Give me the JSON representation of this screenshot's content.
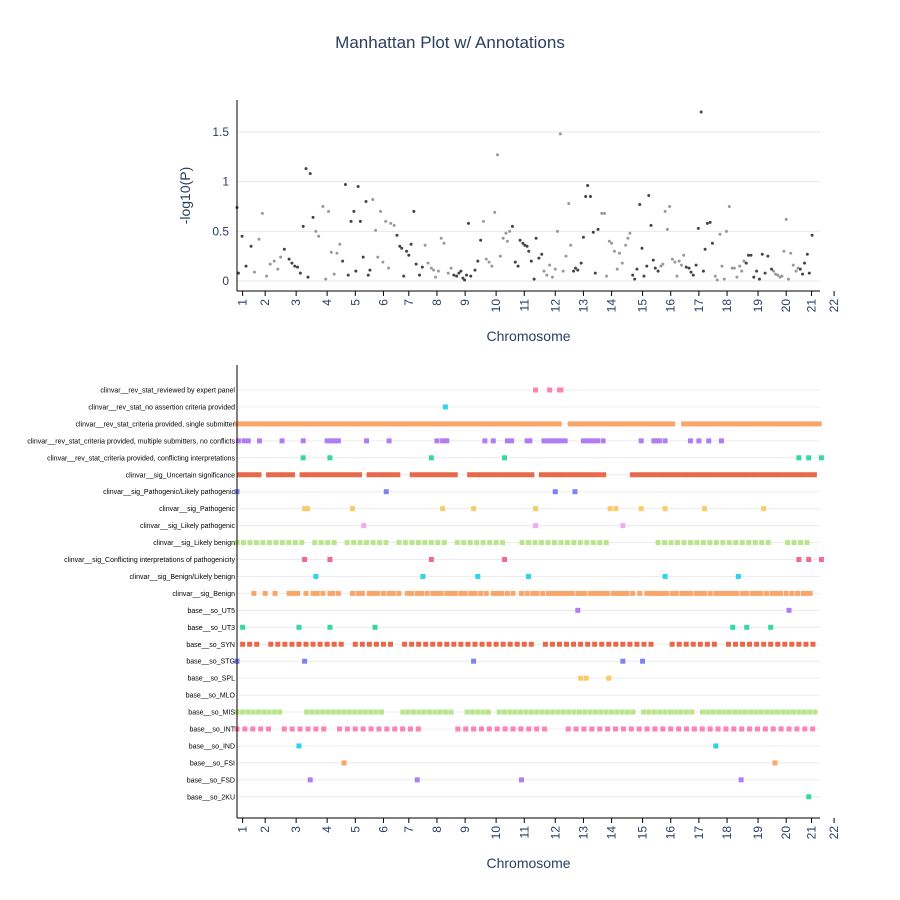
{
  "title": "Manhattan Plot w/ Annotations",
  "chart_data": [
    {
      "type": "scatter",
      "name": "manhattan",
      "xlabel": "Chromosome",
      "ylabel": "-log10(P)",
      "ylim": [
        -0.1,
        1.82
      ],
      "yticks": [
        "0",
        "0.5",
        "1",
        "1.5"
      ],
      "ytick_values": [
        0,
        0.5,
        1,
        1.5
      ],
      "chromosomes": [
        "1",
        "2",
        "3",
        "4",
        "5",
        "6",
        "7",
        "8",
        "9",
        "10",
        "11",
        "12",
        "13",
        "14",
        "15",
        "16",
        "17",
        "18",
        "19",
        "20",
        "21",
        "22"
      ],
      "chrom_positions": [
        0.2,
        1.0,
        2.1,
        3.2,
        4.2,
        5.2,
        6.1,
        7.1,
        8.1,
        9.2,
        10.2,
        11.3,
        12.3,
        13.3,
        14.4,
        15.4,
        16.4,
        17.4,
        18.5,
        19.5,
        20.4,
        21.2
      ],
      "colors": [
        "#444444",
        "#999999"
      ],
      "grid": true,
      "points": [
        [
          0.0,
          0.74
        ],
        [
          0.05,
          0.08
        ],
        [
          0.18,
          0.45
        ],
        [
          0.32,
          0.15
        ],
        [
          0.5,
          0.35
        ],
        [
          0.62,
          0.09
        ],
        [
          0.78,
          0.42
        ],
        [
          0.9,
          0.68
        ],
        [
          1.05,
          0.05
        ],
        [
          1.18,
          0.17
        ],
        [
          1.32,
          0.2
        ],
        [
          1.45,
          0.12
        ],
        [
          1.55,
          0.24
        ],
        [
          1.68,
          0.32
        ],
        [
          1.85,
          0.22
        ],
        [
          1.95,
          0.18
        ],
        [
          2.05,
          0.15
        ],
        [
          2.15,
          0.14
        ],
        [
          2.25,
          0.08
        ],
        [
          2.35,
          0.55
        ],
        [
          2.45,
          1.13
        ],
        [
          2.52,
          0.04
        ],
        [
          2.6,
          1.08
        ],
        [
          2.7,
          0.64
        ],
        [
          2.8,
          0.5
        ],
        [
          2.9,
          0.45
        ],
        [
          3.05,
          0.75
        ],
        [
          3.15,
          0.02
        ],
        [
          3.25,
          0.7
        ],
        [
          3.35,
          0.29
        ],
        [
          3.45,
          0.07
        ],
        [
          3.55,
          0.28
        ],
        [
          3.65,
          0.37
        ],
        [
          3.75,
          0.2
        ],
        [
          3.85,
          0.97
        ],
        [
          3.95,
          0.06
        ],
        [
          4.05,
          0.6
        ],
        [
          4.15,
          0.7
        ],
        [
          4.22,
          0.1
        ],
        [
          4.3,
          0.95
        ],
        [
          4.38,
          0.6
        ],
        [
          4.48,
          0.24
        ],
        [
          4.58,
          0.8
        ],
        [
          4.66,
          0.06
        ],
        [
          4.72,
          0.11
        ],
        [
          4.82,
          0.82
        ],
        [
          4.92,
          0.51
        ],
        [
          5.0,
          0.24
        ],
        [
          5.1,
          0.7
        ],
        [
          5.18,
          0.19
        ],
        [
          5.28,
          0.6
        ],
        [
          5.38,
          0.13
        ],
        [
          5.46,
          0.58
        ],
        [
          5.58,
          0.56
        ],
        [
          5.68,
          0.46
        ],
        [
          5.78,
          0.35
        ],
        [
          5.85,
          0.33
        ],
        [
          5.92,
          0.05
        ],
        [
          6.02,
          0.3
        ],
        [
          6.1,
          0.26
        ],
        [
          6.18,
          0.37
        ],
        [
          6.28,
          0.7
        ],
        [
          6.36,
          0.17
        ],
        [
          6.48,
          0.06
        ],
        [
          6.58,
          0.14
        ],
        [
          6.68,
          0.36
        ],
        [
          6.78,
          0.18
        ],
        [
          6.9,
          0.13
        ],
        [
          6.98,
          0.11
        ],
        [
          7.05,
          0.04
        ],
        [
          7.15,
          0.1
        ],
        [
          7.25,
          0.43
        ],
        [
          7.35,
          0.38
        ],
        [
          7.5,
          0.08
        ],
        [
          7.6,
          0.13
        ],
        [
          7.7,
          0.06
        ],
        [
          7.8,
          0.05
        ],
        [
          7.88,
          0.08
        ],
        [
          7.95,
          0.1
        ],
        [
          8.02,
          0.03
        ],
        [
          8.08,
          0.01
        ],
        [
          8.15,
          0.06
        ],
        [
          8.22,
          0.58
        ],
        [
          8.3,
          0.05
        ],
        [
          8.45,
          0.11
        ],
        [
          8.55,
          0.2
        ],
        [
          8.65,
          0.41
        ],
        [
          8.75,
          0.6
        ],
        [
          8.85,
          0.22
        ],
        [
          8.95,
          0.19
        ],
        [
          9.05,
          0.15
        ],
        [
          9.15,
          0.69
        ],
        [
          9.25,
          1.27
        ],
        [
          9.35,
          0.25
        ],
        [
          9.45,
          0.43
        ],
        [
          9.55,
          0.48
        ],
        [
          9.6,
          0.4
        ],
        [
          9.68,
          0.5
        ],
        [
          9.78,
          0.55
        ],
        [
          9.88,
          0.19
        ],
        [
          9.98,
          0.15
        ],
        [
          10.05,
          0.41
        ],
        [
          10.15,
          0.38
        ],
        [
          10.22,
          0.36
        ],
        [
          10.3,
          0.35
        ],
        [
          10.36,
          0.3
        ],
        [
          10.45,
          0.2
        ],
        [
          10.55,
          0.02
        ],
        [
          10.62,
          0.43
        ],
        [
          10.72,
          0.23
        ],
        [
          10.82,
          0.27
        ],
        [
          10.9,
          0.1
        ],
        [
          11.0,
          0.06
        ],
        [
          11.1,
          0.16
        ],
        [
          11.2,
          0.04
        ],
        [
          11.3,
          0.12
        ],
        [
          11.38,
          0.5
        ],
        [
          11.48,
          1.48
        ],
        [
          11.58,
          0.1
        ],
        [
          11.68,
          0.25
        ],
        [
          11.78,
          0.78
        ],
        [
          11.85,
          0.36
        ],
        [
          11.95,
          0.1
        ],
        [
          12.02,
          0.13
        ],
        [
          12.1,
          0.11
        ],
        [
          12.22,
          0.18
        ],
        [
          12.3,
          0.44
        ],
        [
          12.38,
          0.85
        ],
        [
          12.45,
          0.96
        ],
        [
          12.55,
          0.85
        ],
        [
          12.65,
          0.49
        ],
        [
          12.72,
          0.08
        ],
        [
          12.82,
          0.52
        ],
        [
          12.95,
          0.68
        ],
        [
          13.05,
          0.68
        ],
        [
          13.12,
          0.05
        ],
        [
          13.22,
          0.4
        ],
        [
          13.3,
          0.38
        ],
        [
          13.4,
          0.3
        ],
        [
          13.5,
          0.12
        ],
        [
          13.58,
          0.28
        ],
        [
          13.68,
          0.18
        ],
        [
          13.8,
          0.36
        ],
        [
          13.88,
          0.43
        ],
        [
          13.95,
          0.48
        ],
        [
          14.05,
          0.06
        ],
        [
          14.12,
          0.02
        ],
        [
          14.2,
          0.12
        ],
        [
          14.3,
          0.77
        ],
        [
          14.38,
          0.33
        ],
        [
          14.45,
          0.05
        ],
        [
          14.55,
          0.15
        ],
        [
          14.62,
          0.86
        ],
        [
          14.7,
          0.56
        ],
        [
          14.78,
          0.21
        ],
        [
          14.85,
          0.13
        ],
        [
          14.95,
          0.1
        ],
        [
          15.05,
          0.15
        ],
        [
          15.12,
          0.17
        ],
        [
          15.2,
          0.7
        ],
        [
          15.28,
          0.52
        ],
        [
          15.36,
          0.75
        ],
        [
          15.46,
          0.22
        ],
        [
          15.55,
          0.19
        ],
        [
          15.62,
          0.05
        ],
        [
          15.7,
          0.2
        ],
        [
          15.78,
          0.16
        ],
        [
          15.86,
          0.26
        ],
        [
          15.95,
          0.14
        ],
        [
          16.05,
          0.13
        ],
        [
          16.12,
          0.09
        ],
        [
          16.2,
          0.06
        ],
        [
          16.3,
          0.16
        ],
        [
          16.38,
          0.53
        ],
        [
          16.48,
          1.7
        ],
        [
          16.56,
          0.1
        ],
        [
          16.62,
          0.32
        ],
        [
          16.7,
          0.58
        ],
        [
          16.8,
          0.59
        ],
        [
          16.88,
          0.38
        ],
        [
          16.98,
          0.05
        ],
        [
          17.05,
          0.01
        ],
        [
          17.15,
          0.47
        ],
        [
          17.22,
          0.15
        ],
        [
          17.3,
          0.02
        ],
        [
          17.38,
          0.5
        ],
        [
          17.48,
          0.75
        ],
        [
          17.58,
          0.13
        ],
        [
          17.66,
          0.13
        ],
        [
          17.75,
          0.04
        ],
        [
          17.85,
          0.15
        ],
        [
          17.92,
          0.1
        ],
        [
          18.0,
          0.2
        ],
        [
          18.08,
          0.18
        ],
        [
          18.16,
          0.26
        ],
        [
          18.25,
          0.26
        ],
        [
          18.35,
          0.04
        ],
        [
          18.45,
          0.1
        ],
        [
          18.55,
          0.02
        ],
        [
          18.65,
          0.27
        ],
        [
          18.75,
          0.08
        ],
        [
          18.85,
          0.25
        ],
        [
          18.98,
          0.12
        ],
        [
          19.05,
          0.1
        ],
        [
          19.12,
          0.07
        ],
        [
          19.2,
          0.06
        ],
        [
          19.28,
          0.04
        ],
        [
          19.35,
          0.05
        ],
        [
          19.42,
          0.3
        ],
        [
          19.5,
          0.62
        ],
        [
          19.58,
          0.02
        ],
        [
          19.66,
          0.28
        ],
        [
          19.75,
          0.16
        ],
        [
          19.85,
          0.1
        ],
        [
          19.92,
          0.13
        ],
        [
          20.0,
          0.12
        ],
        [
          20.08,
          0.07
        ],
        [
          20.15,
          0.18
        ],
        [
          20.25,
          0.27
        ],
        [
          20.32,
          0.08
        ],
        [
          20.42,
          0.46
        ]
      ]
    },
    {
      "type": "scatter",
      "name": "annotations",
      "xlabel": "Chromosome",
      "chromosomes": [
        "1",
        "2",
        "3",
        "4",
        "5",
        "6",
        "7",
        "8",
        "9",
        "10",
        "11",
        "12",
        "13",
        "14",
        "15",
        "16",
        "17",
        "18",
        "19",
        "20",
        "21",
        "22"
      ],
      "categories": [
        "clinvar__rev_stat_reviewed by expert panel",
        "clinvar__rev_stat_no assertion criteria provided",
        "clinvar__rev_stat_criteria provided, single submitter",
        "clinvar__rev_stat_criteria provided, multiple submitters, no conflicts",
        "clinvar__rev_stat_criteria provided, conflicting interpretations",
        "clinvar__sig_Uncertain significance",
        "clinvar__sig_Pathogenic/Likely pathogenic",
        "clinvar__sig_Pathogenic",
        "clinvar__sig_Likely pathogenic",
        "clinvar__sig_Likely benign",
        "clinvar__sig_Conflicting interpretations of pathogenicity",
        "clinvar__sig_Benign/Likely benign",
        "clinvar__sig_Benign",
        "base__so_UT5",
        "base__so_UT3",
        "base__so_SYN",
        "base__so_STG",
        "base__so_SPL",
        "base__so_MLO",
        "base__so_MIS",
        "base__so_INT",
        "base__so_IND",
        "base__so_FSI",
        "base__so_FSD",
        "base__so_2KU"
      ],
      "colors": [
        "#fb84b5",
        "#2fd4ec",
        "#f8a66a",
        "#b07ef2",
        "#36d6a9",
        "#e8694a",
        "#7c84ee",
        "#f9cb6b",
        "#f7a8f0",
        "#bbe58c",
        "#f26b8f",
        "#2fd4ec",
        "#f8a66a",
        "#b07ef2",
        "#36d6a9",
        "#e8694a",
        "#7c84ee",
        "#f9cb6b",
        "#f7a8f0",
        "#bbe58c",
        "#fb84b5",
        "#2fd4ec",
        "#f8a66a",
        "#b07ef2",
        "#36d6a9"
      ],
      "x": [
        [
          10.6,
          11.1,
          11.45,
          11.5
        ],
        [
          7.4
        ],
        "dense",
        [
          0.05,
          0.25,
          0.4,
          0.8,
          1.6,
          2.35,
          3.2,
          3.35,
          3.45,
          3.6,
          4.6,
          5.4,
          7.1,
          7.3,
          7.45,
          8.8,
          9.1,
          9.6,
          9.75,
          10.3,
          10.4,
          10.9,
          11.05,
          11.15,
          11.25,
          11.35,
          11.5,
          11.65,
          12.3,
          12.4,
          12.55,
          12.65,
          12.8,
          13.0,
          14.35,
          14.8,
          14.9,
          15.0,
          15.2,
          16.1,
          16.4,
          16.75,
          17.2
        ],
        [
          2.35,
          3.3,
          6.9,
          9.5,
          19.95,
          20.3,
          20.75
        ],
        "dense-gap",
        [
          0.0,
          5.3,
          11.3,
          12.0
        ],
        [
          2.4,
          2.5,
          4.1,
          7.3,
          8.4,
          10.6,
          13.25,
          13.45,
          14.35,
          15.2,
          16.6,
          18.7
        ],
        [
          4.5,
          10.6,
          13.7
        ],
        "dense-mid",
        [
          2.4,
          3.3,
          6.9,
          9.5,
          19.95,
          20.3,
          20.75
        ],
        [
          2.8,
          6.6,
          8.55,
          10.35,
          15.2,
          17.8
        ],
        [
          0.6,
          1.0,
          1.35,
          1.85,
          2.0,
          2.15,
          2.45,
          2.7,
          2.85,
          3.05,
          3.3,
          3.4,
          3.6,
          4.1,
          4.3,
          4.45,
          4.7,
          4.85,
          5.0,
          5.2,
          5.4,
          5.55,
          5.75,
          6.05,
          6.2,
          6.4,
          6.55,
          6.75,
          6.95,
          7.1,
          7.25,
          7.45,
          7.6,
          7.75,
          7.95,
          8.1,
          8.3,
          8.45,
          8.65,
          8.85,
          9.1,
          9.25,
          9.4,
          9.6,
          9.8,
          10.1,
          10.3,
          10.5,
          10.65,
          10.85,
          11.05,
          11.15,
          11.3,
          11.45,
          11.6,
          11.75,
          11.9,
          12.1,
          12.2,
          12.35,
          12.55,
          12.7,
          12.85,
          13.0,
          13.15,
          13.35,
          13.45,
          13.55,
          13.7,
          13.85,
          14.05,
          14.3,
          14.55,
          14.7,
          14.85,
          15.0,
          15.1,
          15.25,
          15.45,
          15.6,
          15.8,
          15.95,
          16.1,
          16.3,
          16.45,
          16.6,
          16.8,
          17.0,
          17.15,
          17.3,
          17.45,
          17.6,
          17.75,
          17.95,
          18.1,
          18.3,
          18.45,
          18.6,
          18.8,
          19.0,
          19.15,
          19.3,
          19.5,
          19.7,
          19.9,
          20.1,
          20.2,
          20.35
        ],
        [
          12.1,
          19.6
        ],
        [
          0.2,
          2.2,
          3.3,
          4.9,
          17.6,
          18.1,
          18.95
        ],
        "dense-syn",
        [
          0.0,
          2.4,
          8.4,
          13.7,
          14.4
        ],
        [
          12.2,
          12.4,
          13.2
        ],
        [],
        "dense-mis",
        "dense-int",
        [
          2.2,
          17.0
        ],
        [
          3.8,
          19.1
        ],
        [
          2.6,
          6.4,
          10.1,
          17.9
        ],
        [
          20.3
        ]
      ],
      "grid": true
    }
  ]
}
